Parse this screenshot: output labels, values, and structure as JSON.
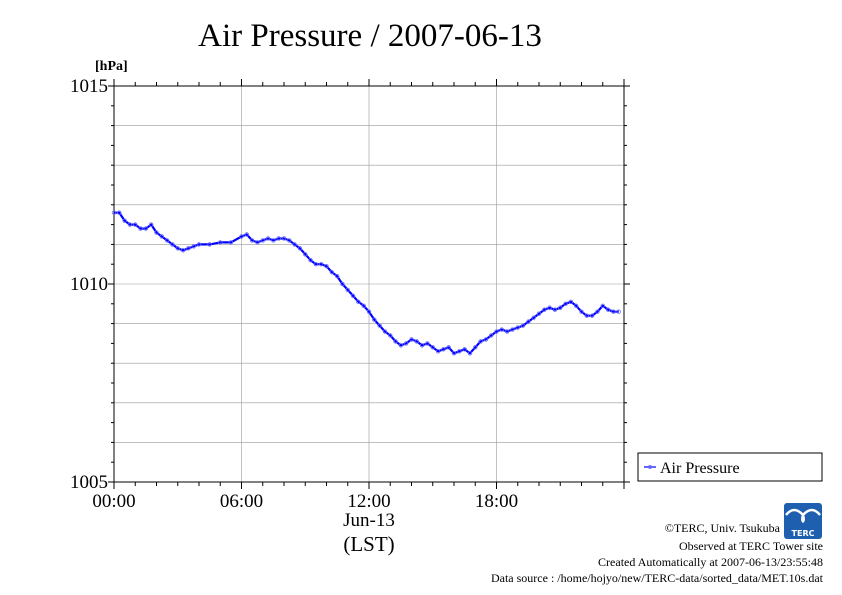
{
  "chart_data": {
    "type": "line",
    "title": "Air Pressure / 2007-06-13",
    "ylabel": "[hPa]",
    "xlabel_date": "Jun-13",
    "xlabel_tz": "(LST)",
    "ylim": [
      1005,
      1015
    ],
    "y_ticks": [
      "1005",
      "1010",
      "1015"
    ],
    "xlim_hours": [
      0,
      24
    ],
    "x_ticks": [
      {
        "hour": 0,
        "label": "00:00"
      },
      {
        "hour": 6,
        "label": "06:00"
      },
      {
        "hour": 12,
        "label": "12:00"
      },
      {
        "hour": 18,
        "label": "18:00"
      }
    ],
    "grid": true,
    "legend_position": "right",
    "series": [
      {
        "name": "Air Pressure",
        "color": "#0000ff",
        "x_hours": [
          0.0,
          0.25,
          0.5,
          0.75,
          1.0,
          1.25,
          1.5,
          1.75,
          2.0,
          2.25,
          2.5,
          2.75,
          3.0,
          3.25,
          3.5,
          3.75,
          4.0,
          4.5,
          5.0,
          5.5,
          6.0,
          6.25,
          6.5,
          6.75,
          7.0,
          7.25,
          7.5,
          7.75,
          8.0,
          8.25,
          8.5,
          8.75,
          9.0,
          9.25,
          9.5,
          9.75,
          10.0,
          10.25,
          10.5,
          10.75,
          11.0,
          11.25,
          11.5,
          11.75,
          12.0,
          12.25,
          12.5,
          12.75,
          13.0,
          13.25,
          13.5,
          13.75,
          14.0,
          14.25,
          14.5,
          14.75,
          15.0,
          15.25,
          15.5,
          15.75,
          16.0,
          16.25,
          16.5,
          16.75,
          17.0,
          17.25,
          17.5,
          17.75,
          18.0,
          18.25,
          18.5,
          18.75,
          19.0,
          19.25,
          19.5,
          19.75,
          20.0,
          20.25,
          20.5,
          20.75,
          21.0,
          21.25,
          21.5,
          21.75,
          22.0,
          22.25,
          22.5,
          22.75,
          23.0,
          23.25,
          23.5,
          23.75
        ],
        "values": [
          1011.8,
          1011.8,
          1011.6,
          1011.5,
          1011.5,
          1011.4,
          1011.4,
          1011.5,
          1011.3,
          1011.2,
          1011.1,
          1011.0,
          1010.9,
          1010.85,
          1010.9,
          1010.95,
          1011.0,
          1011.0,
          1011.05,
          1011.05,
          1011.2,
          1011.25,
          1011.1,
          1011.05,
          1011.1,
          1011.15,
          1011.1,
          1011.15,
          1011.15,
          1011.1,
          1011.0,
          1010.9,
          1010.75,
          1010.6,
          1010.5,
          1010.5,
          1010.45,
          1010.3,
          1010.2,
          1010.0,
          1009.85,
          1009.7,
          1009.55,
          1009.45,
          1009.3,
          1009.1,
          1008.95,
          1008.8,
          1008.7,
          1008.55,
          1008.45,
          1008.5,
          1008.6,
          1008.55,
          1008.45,
          1008.5,
          1008.4,
          1008.3,
          1008.35,
          1008.4,
          1008.25,
          1008.3,
          1008.35,
          1008.25,
          1008.4,
          1008.55,
          1008.6,
          1008.7,
          1008.8,
          1008.85,
          1008.8,
          1008.85,
          1008.9,
          1008.95,
          1009.05,
          1009.15,
          1009.25,
          1009.35,
          1009.4,
          1009.35,
          1009.4,
          1009.5,
          1009.55,
          1009.45,
          1009.3,
          1009.2,
          1009.2,
          1009.3,
          1009.45,
          1009.35,
          1009.3,
          1009.3
        ]
      }
    ]
  },
  "credits": {
    "copyright": "©TERC, Univ. Tsukuba",
    "observed": "Observed at TERC Tower site",
    "created": "Created Automatically at 2007-06-13/23:55:48",
    "source": "Data source : /home/hojyo/new/TERC-data/sorted_data/MET.10s.dat"
  },
  "logo": {
    "text": "TERC",
    "color": "#1f5fb0"
  }
}
